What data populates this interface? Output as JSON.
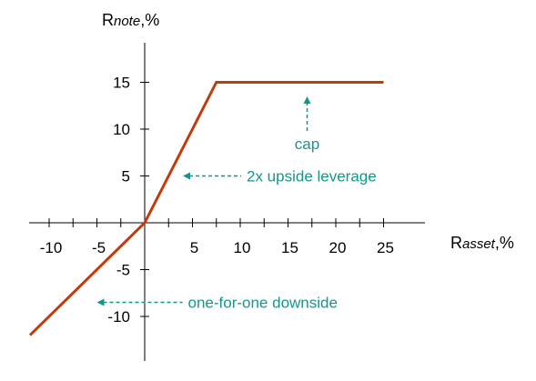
{
  "chart_data": {
    "type": "line",
    "title": "",
    "xlabel": {
      "main": "R",
      "sub": "asset",
      "suffix": ",%"
    },
    "ylabel": {
      "main": "R",
      "sub": "note",
      "suffix": ",%"
    },
    "xlim": [
      -12,
      30
    ],
    "ylim": [
      -13.5,
      21
    ],
    "x_ticks": [
      -10,
      -5,
      5,
      10,
      15,
      20,
      25
    ],
    "x_minor_ticks": [
      -7.5,
      -2.5,
      2.5,
      7.5,
      12.5,
      17.5,
      22.5
    ],
    "y_ticks": [
      -10,
      -5,
      5,
      10,
      15
    ],
    "grid": false,
    "series": [
      {
        "x": [
          -12,
          0,
          7.5,
          25
        ],
        "y": [
          -12,
          0,
          15,
          15
        ],
        "color": "#c23b0e"
      }
    ],
    "annotations": [
      {
        "text": "cap",
        "arrow": "up",
        "point": [
          17,
          13.5
        ],
        "color": "#17958a"
      },
      {
        "text": "2x upside leverage",
        "arrow": "left",
        "point": [
          4,
          5
        ],
        "color": "#17958a"
      },
      {
        "text": "one-for-one downside",
        "arrow": "left",
        "point": [
          -5,
          -8.5
        ],
        "color": "#17958a"
      }
    ]
  }
}
